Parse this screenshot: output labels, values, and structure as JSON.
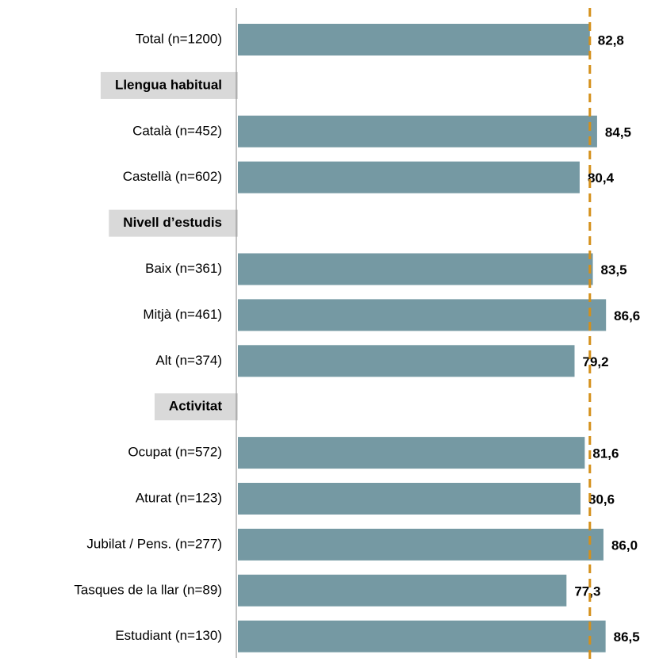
{
  "chart_data": {
    "type": "bar",
    "orientation": "horizontal",
    "categories": [
      "Total (n=1200)",
      "Llengua habitual",
      "Català (n=452)",
      "Castellà (n=602)",
      "Nivell d’estudis",
      "Baix (n=361)",
      "Mitjà (n=461)",
      "Alt (n=374)",
      "Activitat",
      "Ocupat (n=572)",
      "Aturat (n=123)",
      "Jubilat / Pens. (n=277)",
      "Tasques de la llar (n=89)",
      "Estudiant (n=130)"
    ],
    "values": [
      82.8,
      null,
      84.5,
      80.4,
      null,
      83.5,
      86.6,
      79.2,
      null,
      81.6,
      80.6,
      86.0,
      77.3,
      86.5
    ],
    "value_labels": [
      "82,8",
      null,
      "84,5",
      "80,4",
      null,
      "83,5",
      "86,6",
      "79,2",
      null,
      "81,6",
      "80,6",
      "86,0",
      "77,3",
      "86,5"
    ],
    "color": "#7599a3",
    "xlim": [
      0,
      90
    ],
    "reference_color": "#d4901a"
  }
}
